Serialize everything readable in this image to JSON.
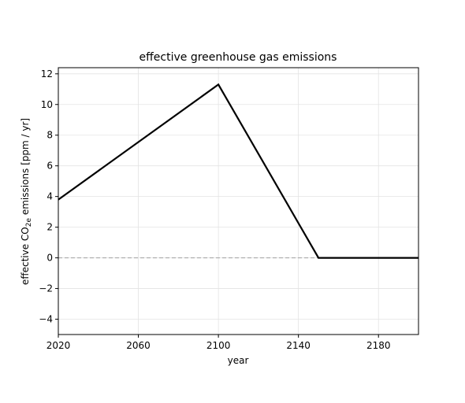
{
  "chart_data": {
    "type": "line",
    "title": "effective greenhouse gas emissions",
    "xlabel": "year",
    "ylabel": {
      "prefix": "effective CO",
      "subscript": "2e",
      "suffix": " emissions [ppm / yr]"
    },
    "xlim": [
      2020,
      2200
    ],
    "ylim": [
      -5,
      12.4
    ],
    "x_ticks": [
      2020,
      2060,
      2100,
      2140,
      2180
    ],
    "x_tick_labels": [
      "2020",
      "2060",
      "2100",
      "2140",
      "2180"
    ],
    "y_ticks": [
      -4,
      -2,
      0,
      2,
      4,
      6,
      8,
      10,
      12
    ],
    "y_tick_labels": [
      "−4",
      "−2",
      "0",
      "2",
      "4",
      "6",
      "8",
      "10",
      "12"
    ],
    "grid": true,
    "series": [
      {
        "x": [
          2020,
          2100,
          2150,
          2200
        ],
        "y": [
          3.8,
          11.3,
          0,
          0
        ],
        "color": "#000000"
      }
    ],
    "reference_lines": [
      {
        "y": 0,
        "style": "dashed",
        "color": "#aaaaaa"
      }
    ]
  }
}
